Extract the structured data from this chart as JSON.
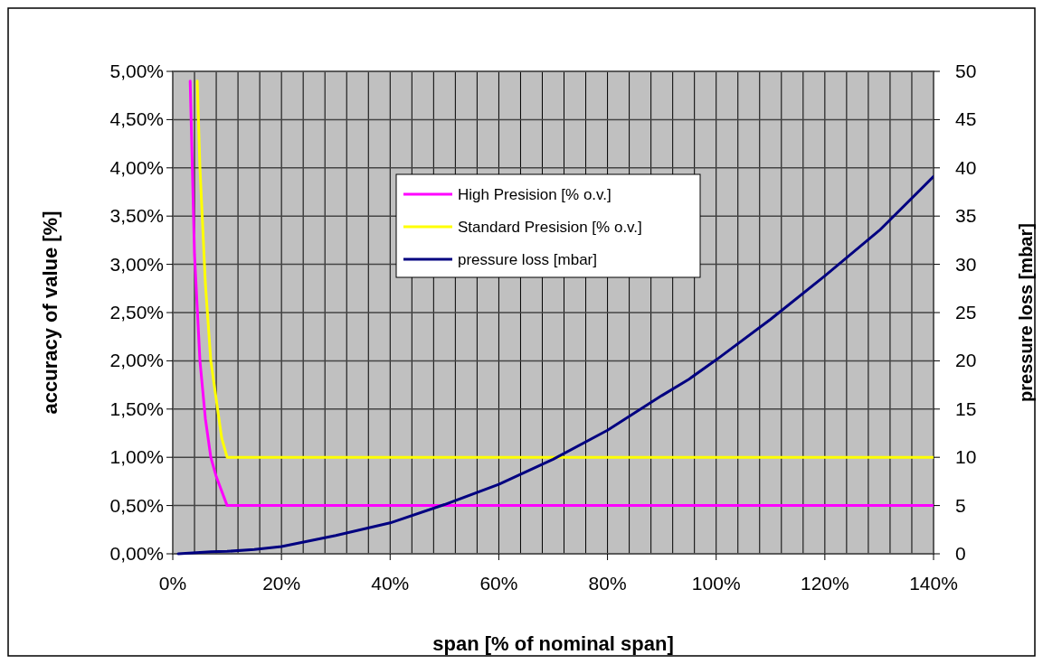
{
  "chart_data": {
    "type": "line",
    "xlabel": "span [% of nominal span]",
    "ylabel": "accuracy of value [%]",
    "y2label": "pressure loss [mbar]",
    "xlim": [
      0,
      140
    ],
    "xticks": [
      {
        "value": 0,
        "label": "0%"
      },
      {
        "value": 4,
        "label": null
      },
      {
        "value": 8,
        "label": null
      },
      {
        "value": 12,
        "label": null
      },
      {
        "value": 16,
        "label": null
      },
      {
        "value": 20,
        "label": "20%"
      },
      {
        "value": 24,
        "label": null
      },
      {
        "value": 28,
        "label": null
      },
      {
        "value": 32,
        "label": null
      },
      {
        "value": 36,
        "label": null
      },
      {
        "value": 40,
        "label": "40%"
      },
      {
        "value": 44,
        "label": null
      },
      {
        "value": 48,
        "label": null
      },
      {
        "value": 52,
        "label": null
      },
      {
        "value": 56,
        "label": null
      },
      {
        "value": 60,
        "label": "60%"
      },
      {
        "value": 64,
        "label": null
      },
      {
        "value": 68,
        "label": null
      },
      {
        "value": 72,
        "label": null
      },
      {
        "value": 76,
        "label": null
      },
      {
        "value": 80,
        "label": "80%"
      },
      {
        "value": 84,
        "label": null
      },
      {
        "value": 88,
        "label": null
      },
      {
        "value": 92,
        "label": null
      },
      {
        "value": 96,
        "label": null
      },
      {
        "value": 100,
        "label": "100%"
      },
      {
        "value": 104,
        "label": null
      },
      {
        "value": 108,
        "label": null
      },
      {
        "value": 112,
        "label": null
      },
      {
        "value": 116,
        "label": null
      },
      {
        "value": 120,
        "label": "120%"
      },
      {
        "value": 124,
        "label": null
      },
      {
        "value": 128,
        "label": null
      },
      {
        "value": 132,
        "label": null
      },
      {
        "value": 136,
        "label": null
      },
      {
        "value": 140,
        "label": "140%"
      }
    ],
    "ylim": [
      0,
      5
    ],
    "yticks": [
      {
        "value": 0,
        "label": "0,00%"
      },
      {
        "value": 0.5,
        "label": "0,50%"
      },
      {
        "value": 1,
        "label": "1,00%"
      },
      {
        "value": 1.5,
        "label": "1,50%"
      },
      {
        "value": 2,
        "label": "2,00%"
      },
      {
        "value": 2.5,
        "label": "2,50%"
      },
      {
        "value": 3,
        "label": "3,00%"
      },
      {
        "value": 3.5,
        "label": "3,50%"
      },
      {
        "value": 4,
        "label": "4,00%"
      },
      {
        "value": 4.5,
        "label": "4,50%"
      },
      {
        "value": 5,
        "label": "5,00%"
      }
    ],
    "y2lim": [
      0,
      50
    ],
    "y2ticks": [
      0,
      5,
      10,
      15,
      20,
      25,
      30,
      35,
      40,
      45,
      50
    ],
    "grid": true,
    "legend": "top",
    "marker": "none",
    "line_style": "solid",
    "series": [
      {
        "name": "High Presision [% o.v.]",
        "color": "#ff00ff",
        "x": [
          3.2,
          4,
          5,
          6,
          7,
          8,
          10,
          140
        ],
        "values": [
          4.9,
          3.1,
          2,
          1.4,
          1.0,
          0.8,
          0.5,
          0.5
        ]
      },
      {
        "name": "Standard Presision [% o.v.]",
        "color": "#ffff00",
        "x": [
          4.5,
          5,
          6,
          7,
          8,
          9,
          10,
          140
        ],
        "values": [
          4.9,
          4,
          2.8,
          2.0,
          1.6,
          1.2,
          1,
          1
        ]
      },
      {
        "name": "pressure loss [mbar]",
        "color": "#000080",
        "axis": "y2",
        "x": [
          1,
          7,
          10,
          15,
          20,
          30,
          40,
          50,
          60,
          70,
          80,
          90,
          95,
          100,
          110,
          120,
          130,
          140
        ],
        "values": [
          0,
          0.2,
          0.25,
          0.45,
          0.75,
          1.9,
          3.2,
          5.1,
          7.2,
          9.8,
          12.8,
          16.4,
          18.1,
          20.1,
          24.3,
          28.8,
          33.5,
          39.1
        ]
      }
    ]
  }
}
